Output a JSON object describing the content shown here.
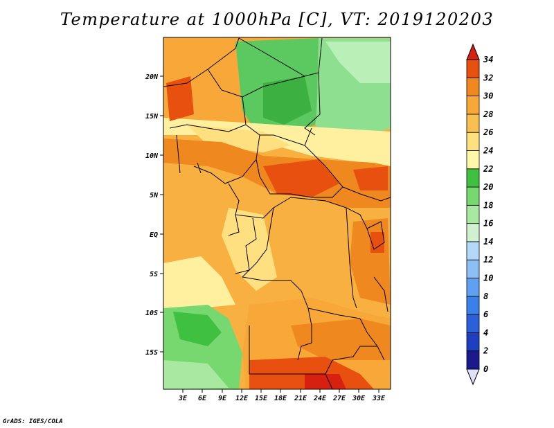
{
  "title": "Temperature at 1000hPa [C], VT: 2019120203",
  "credit": "GrADS: IGES/COLA",
  "map": {
    "lat_ticks": [
      "20N",
      "15N",
      "10N",
      "5N",
      "EQ",
      "5S",
      "10S",
      "15S"
    ],
    "lon_ticks": [
      "3E",
      "6E",
      "9E",
      "12E",
      "15E",
      "18E",
      "21E",
      "24E",
      "27E",
      "30E",
      "33E"
    ]
  },
  "colorbar": {
    "labels": [
      "0",
      "2",
      "4",
      "6",
      "8",
      "10",
      "12",
      "14",
      "16",
      "18",
      "20",
      "22",
      "24",
      "26",
      "28",
      "30",
      "32",
      "34"
    ],
    "colors": [
      "#1a1a8c",
      "#1e3fc0",
      "#2b60d8",
      "#3a80e8",
      "#5fa0f0",
      "#8cc0f5",
      "#b4d8fa",
      "#d0f0d0",
      "#a8e8a0",
      "#78d870",
      "#40c040",
      "#fff8a8",
      "#ffe080",
      "#f8c050",
      "#f8a838",
      "#f08820",
      "#e85010",
      "#d82010"
    ]
  }
}
